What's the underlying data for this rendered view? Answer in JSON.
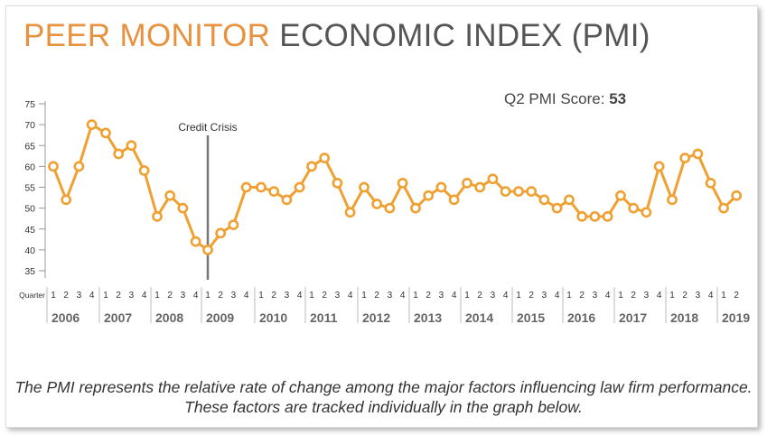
{
  "header": {
    "title_accent": "PEER MONITOR",
    "title_rest": "ECONOMIC INDEX (PMI)",
    "score_label": "Q2 PMI Score:",
    "score_value": "53"
  },
  "caption": "The PMI represents the relative rate of change among the major factors influencing law firm performance. These factors are tracked individually in the graph below.",
  "colors": {
    "accent": "#e8913e",
    "line": "#f0a030",
    "marker_fill": "#ffffff",
    "axis": "#999999",
    "annotation_line": "#777777",
    "year_text": "#666666"
  },
  "chart_data": {
    "type": "line",
    "title": "PEER MONITOR ECONOMIC INDEX (PMI)",
    "x_axis_label": "Quarter",
    "ylim": [
      35,
      75
    ],
    "yticks": [
      35,
      40,
      45,
      50,
      55,
      60,
      65,
      70,
      75
    ],
    "grid": false,
    "years": [
      "2006",
      "2007",
      "2008",
      "2009",
      "2010",
      "2011",
      "2012",
      "2013",
      "2014",
      "2015",
      "2016",
      "2017",
      "2018",
      "2019"
    ],
    "quarters_per_year": [
      4,
      4,
      4,
      4,
      4,
      4,
      4,
      4,
      4,
      4,
      4,
      4,
      4,
      2
    ],
    "series": [
      {
        "values": [
          60,
          52,
          60,
          70,
          68,
          63,
          65,
          59,
          48,
          53,
          50,
          42,
          40,
          44,
          46,
          55,
          55,
          54,
          52,
          55,
          60,
          62,
          56,
          49,
          55,
          51,
          50,
          56,
          50,
          53,
          55,
          52,
          56,
          55,
          57,
          54,
          54,
          54,
          52,
          50,
          52,
          48,
          48,
          48,
          53,
          50,
          49,
          60,
          52,
          62,
          63,
          56,
          50,
          53
        ]
      }
    ],
    "annotations": [
      {
        "label": "Credit Crisis",
        "year": "2009",
        "quarter": 1
      }
    ]
  }
}
